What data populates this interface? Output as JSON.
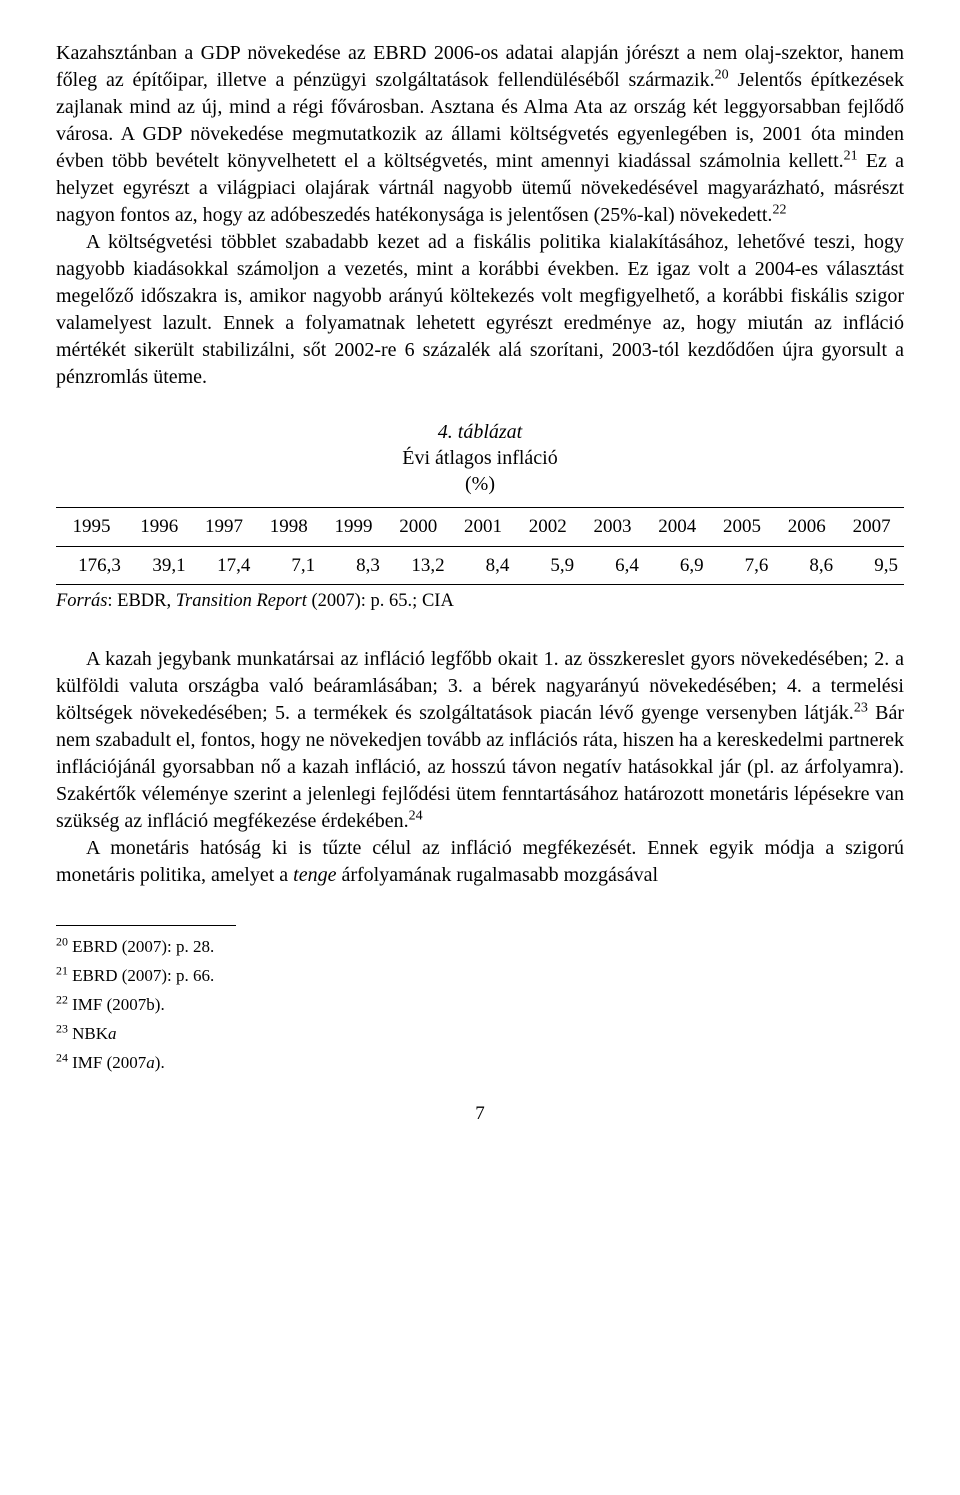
{
  "paragraphs": {
    "p1_a": "Kazahsztánban a GDP növekedése az EBRD 2006-os adatai alapján jórészt a nem olaj-szektor, hanem főleg az építőipar, illetve a pénzügyi szolgáltatások fellendüléséből származik.",
    "p1_b": " Jelentős építkezések zajlanak mind az új, mind a régi fővárosban. Asztana és Alma Ata az ország két leggyorsabban fejlődő városa. A GDP növekedése megmutatkozik az állami költségvetés egyenlegében is, 2001 óta minden évben több bevételt könyvelhetett el a költségvetés, mint amennyi kiadással számolnia kellett.",
    "p1_c": " Ez a helyzet egyrészt a világpiaci olajárak vártnál nagyobb ütemű növekedésével magyarázható, másrészt nagyon fontos az, hogy az adóbeszedés hatékonysága is jelentősen (25%-kal) növekedett.",
    "p2": "A költségvetési többlet szabadabb kezet ad a fiskális politika kialakításához, lehetővé teszi, hogy nagyobb kiadásokkal számoljon a vezetés, mint a korábbi években. Ez igaz volt a 2004-es választást megelőző időszakra is, amikor nagyobb arányú költekezés volt megfigyelhető, a korábbi fiskális szigor valamelyest lazult. Ennek a folyamatnak lehetett egyrészt eredménye az, hogy miután az infláció mértékét sikerült stabilizálni, sőt 2002-re 6 százalék alá szorítani, 2003-tól kezdődően újra gyorsult a pénzromlás üteme.",
    "p3_a": "A kazah jegybank munkatársai az infláció legfőbb okait 1. az összkereslet gyors növekedésében; 2. a külföldi valuta országba való beáramlásában; 3. a bérek nagyarányú növekedésében; 4. a termelési költségek növekedésében; 5. a termékek és szolgáltatások piacán lévő gyenge versenyben látják.",
    "p3_b": " Bár nem szabadult el, fontos, hogy ne növekedjen tovább az inflációs ráta, hiszen ha a kereskedelmi partnerek inflációjánál gyorsabban nő a kazah infláció, az hosszú távon negatív hatásokkal jár (pl. az árfolyamra). Szakértők véleménye szerint a jelenlegi fejlődési ütem fenntartásához határozott monetáris lépésekre van szükség az infláció megfékezése érdekében.",
    "p4_a": "A monetáris hatóság ki is tűzte célul az infláció megfékezését. Ennek egyik módja a szigorú monetáris politika, amelyet a ",
    "p4_ital": "tenge",
    "p4_b": " árfolyamának rugalmasabb mozgásával"
  },
  "table": {
    "caption_num": "4. táblázat",
    "caption_title": "Évi átlagos infláció",
    "caption_unit": "(%)",
    "headers": [
      "1995",
      "1996",
      "1997",
      "1998",
      "1999",
      "2000",
      "2001",
      "2002",
      "2003",
      "2004",
      "2005",
      "2006",
      "2007"
    ],
    "row": [
      "176,3",
      "39,1",
      "17,4",
      "7,1",
      "8,3",
      "13,2",
      "8,4",
      "5,9",
      "6,4",
      "6,9",
      "7,6",
      "8,6",
      "9,5"
    ],
    "source_label": "Forrás",
    "source_text_a": ": EBDR, ",
    "source_ital": "Transition Report",
    "source_text_b": " (2007): p. 65.; CIA"
  },
  "superscripts": {
    "s20": "20",
    "s21": "21",
    "s22": "22",
    "s23": "23",
    "s24": "24"
  },
  "footnotes": {
    "f20": " EBRD (2007): p. 28.",
    "f21": " EBRD (2007): p. 66.",
    "f22": " IMF (2007b).",
    "f23_a": " NBK",
    "f23_ital": "a",
    "f24_a": " IMF (2007",
    "f24_ital": "a",
    "f24_b": ")."
  },
  "pagenum": "7"
}
